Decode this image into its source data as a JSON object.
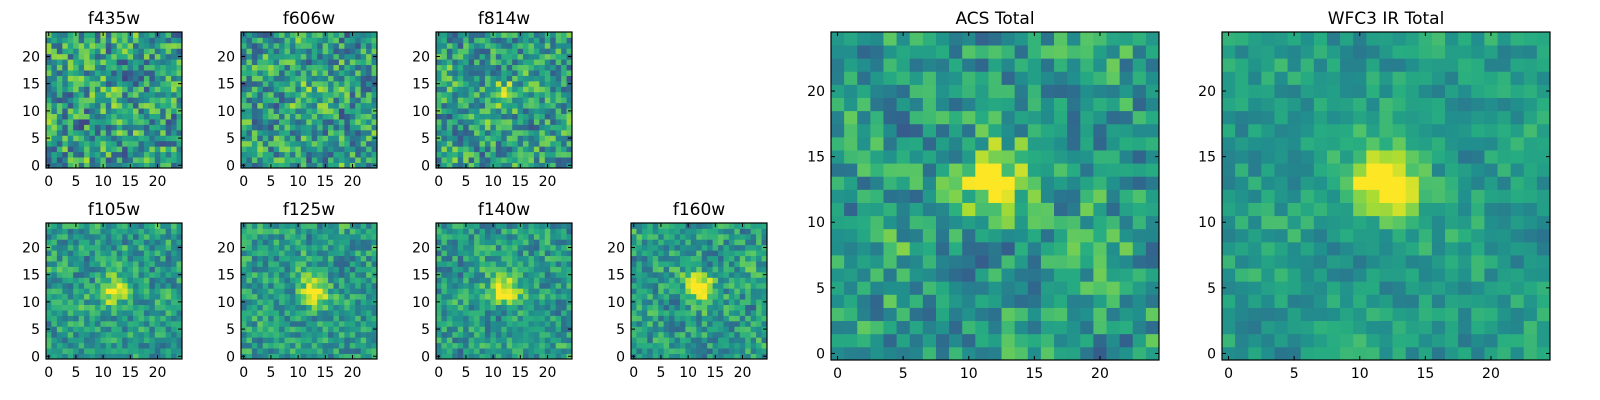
{
  "colors": {
    "low": "#440154",
    "high": "#fde725",
    "colormap": "viridis"
  },
  "chart_data": [
    {
      "type": "heatmap",
      "title": "f435w",
      "grid_size": 25,
      "xlim": [
        0,
        24
      ],
      "ylim": [
        0,
        24
      ],
      "xticks": [
        "0",
        "5",
        "10",
        "15",
        "20"
      ],
      "yticks": [
        "0",
        "5",
        "10",
        "15",
        "20"
      ],
      "noise": 0.3,
      "source_amplitude": 0.1,
      "source_center": [
        12,
        13
      ],
      "seed": 11
    },
    {
      "type": "heatmap",
      "title": "f606w",
      "grid_size": 25,
      "xlim": [
        0,
        24
      ],
      "ylim": [
        0,
        24
      ],
      "xticks": [
        "0",
        "5",
        "10",
        "15",
        "20"
      ],
      "yticks": [
        "0",
        "5",
        "10",
        "15",
        "20"
      ],
      "noise": 0.28,
      "source_amplitude": 0.22,
      "source_center": [
        12,
        13
      ],
      "seed": 12
    },
    {
      "type": "heatmap",
      "title": "f814w",
      "grid_size": 25,
      "xlim": [
        0,
        24
      ],
      "ylim": [
        0,
        24
      ],
      "xticks": [
        "0",
        "5",
        "10",
        "15",
        "20"
      ],
      "yticks": [
        "0",
        "5",
        "10",
        "15",
        "20"
      ],
      "noise": 0.26,
      "source_amplitude": 0.35,
      "source_center": [
        12,
        13
      ],
      "seed": 13
    },
    {
      "type": "heatmap",
      "title": "f105w",
      "grid_size": 25,
      "xlim": [
        0,
        24
      ],
      "ylim": [
        0,
        24
      ],
      "xticks": [
        "0",
        "5",
        "10",
        "15",
        "20"
      ],
      "yticks": [
        "0",
        "5",
        "10",
        "15",
        "20"
      ],
      "noise": 0.2,
      "source_amplitude": 0.45,
      "source_center": [
        12,
        12
      ],
      "seed": 14
    },
    {
      "type": "heatmap",
      "title": "f125w",
      "grid_size": 25,
      "xlim": [
        0,
        24
      ],
      "ylim": [
        0,
        24
      ],
      "xticks": [
        "0",
        "5",
        "10",
        "15",
        "20"
      ],
      "yticks": [
        "0",
        "5",
        "10",
        "15",
        "20"
      ],
      "noise": 0.2,
      "source_amplitude": 0.5,
      "source_center": [
        13,
        12
      ],
      "seed": 15
    },
    {
      "type": "heatmap",
      "title": "f140w",
      "grid_size": 25,
      "xlim": [
        0,
        24
      ],
      "ylim": [
        0,
        24
      ],
      "xticks": [
        "0",
        "5",
        "10",
        "15",
        "20"
      ],
      "yticks": [
        "0",
        "5",
        "10",
        "15",
        "20"
      ],
      "noise": 0.2,
      "source_amplitude": 0.5,
      "source_center": [
        12,
        12
      ],
      "seed": 16
    },
    {
      "type": "heatmap",
      "title": "f160w",
      "grid_size": 25,
      "xlim": [
        0,
        24
      ],
      "ylim": [
        0,
        24
      ],
      "xticks": [
        "0",
        "5",
        "10",
        "15",
        "20"
      ],
      "yticks": [
        "0",
        "5",
        "10",
        "15",
        "20"
      ],
      "noise": 0.2,
      "source_amplitude": 0.55,
      "source_center": [
        12,
        13
      ],
      "seed": 17
    },
    {
      "type": "heatmap",
      "title": "ACS Total",
      "grid_size": 25,
      "xlim": [
        0,
        24
      ],
      "ylim": [
        0,
        24
      ],
      "xticks": [
        "0",
        "5",
        "10",
        "15",
        "20"
      ],
      "yticks": [
        "0",
        "5",
        "10",
        "15",
        "20"
      ],
      "noise": 0.22,
      "source_amplitude": 0.45,
      "source_center": [
        12,
        13
      ],
      "seed": 21
    },
    {
      "type": "heatmap",
      "title": "WFC3 IR Total",
      "grid_size": 25,
      "xlim": [
        0,
        24
      ],
      "ylim": [
        0,
        24
      ],
      "xticks": [
        "0",
        "5",
        "10",
        "15",
        "20"
      ],
      "yticks": [
        "0",
        "5",
        "10",
        "15",
        "20"
      ],
      "noise": 0.12,
      "source_amplitude": 0.6,
      "source_center": [
        12,
        13
      ],
      "seed": 22
    }
  ]
}
